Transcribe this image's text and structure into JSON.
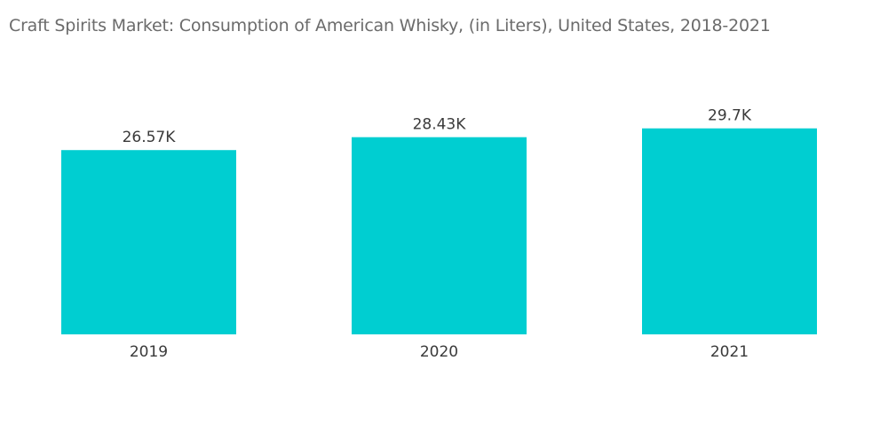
{
  "chart_data": {
    "type": "bar",
    "title": "Craft Spirits Market: Consumption of American Whisky, (in Liters), United States, 2018-2021",
    "xlabel": "",
    "ylabel": "",
    "categories": [
      "2019",
      "2020",
      "2021"
    ],
    "values": [
      26.57,
      28.43,
      29.7
    ],
    "value_labels": [
      "26.57K",
      "28.43K",
      "29.7K"
    ],
    "bar_color": "#00CED1",
    "grid": false,
    "legend": "none"
  }
}
